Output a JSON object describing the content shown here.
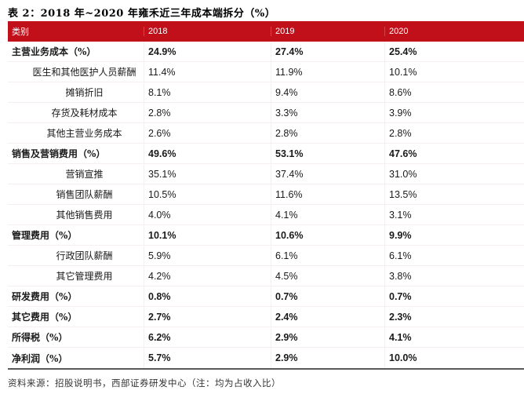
{
  "title": "表 2：2018 年~2020 年雍禾近三年成本端拆分（%）",
  "table": {
    "header": {
      "category": "类别",
      "years": [
        "2018",
        "2019",
        "2020"
      ]
    },
    "rows": [
      {
        "label": "主营业务成本（%）",
        "type": "section",
        "values": [
          "24.9%",
          "27.4%",
          "25.4%"
        ]
      },
      {
        "label": "医生和其他医护人员薪酬",
        "type": "sub",
        "values": [
          "11.4%",
          "11.9%",
          "10.1%"
        ]
      },
      {
        "label": "摊销折旧",
        "type": "sub",
        "values": [
          "8.1%",
          "9.4%",
          "8.6%"
        ]
      },
      {
        "label": "存货及耗材成本",
        "type": "sub",
        "values": [
          "2.8%",
          "3.3%",
          "3.9%"
        ]
      },
      {
        "label": "其他主营业务成本",
        "type": "sub",
        "values": [
          "2.6%",
          "2.8%",
          "2.8%"
        ]
      },
      {
        "label": "销售及营销费用（%）",
        "type": "section",
        "values": [
          "49.6%",
          "53.1%",
          "47.6%"
        ]
      },
      {
        "label": "营销宣推",
        "type": "sub",
        "values": [
          "35.1%",
          "37.4%",
          "31.0%"
        ]
      },
      {
        "label": "销售团队薪酬",
        "type": "sub",
        "values": [
          "10.5%",
          "11.6%",
          "13.5%"
        ]
      },
      {
        "label": "其他销售费用",
        "type": "sub",
        "values": [
          "4.0%",
          "4.1%",
          "3.1%"
        ]
      },
      {
        "label": "管理费用（%）",
        "type": "section",
        "values": [
          "10.1%",
          "10.6%",
          "9.9%"
        ]
      },
      {
        "label": "行政团队薪酬",
        "type": "sub",
        "values": [
          "5.9%",
          "6.1%",
          "6.1%"
        ]
      },
      {
        "label": "其它管理费用",
        "type": "sub",
        "values": [
          "4.2%",
          "4.5%",
          "3.8%"
        ]
      },
      {
        "label": "研发费用（%）",
        "type": "section",
        "values": [
          "0.8%",
          "0.7%",
          "0.7%"
        ]
      },
      {
        "label": "其它费用（%）",
        "type": "section",
        "values": [
          "2.7%",
          "2.4%",
          "2.3%"
        ]
      },
      {
        "label": "所得税（%）",
        "type": "section",
        "values": [
          "6.2%",
          "2.9%",
          "4.1%"
        ]
      },
      {
        "label": "净利润（%）",
        "type": "section",
        "values": [
          "5.7%",
          "2.9%",
          "10.0%"
        ]
      }
    ]
  },
  "footer": {
    "source": "资料来源：招股说明书，西部证券研发中心（注：均为占收入比）"
  },
  "colors": {
    "header_bg": "#c2101b",
    "header_text": "#ffffff",
    "row_divider": "#f6efef",
    "bottom_border": "#595959",
    "text": "#1a1a1a"
  }
}
